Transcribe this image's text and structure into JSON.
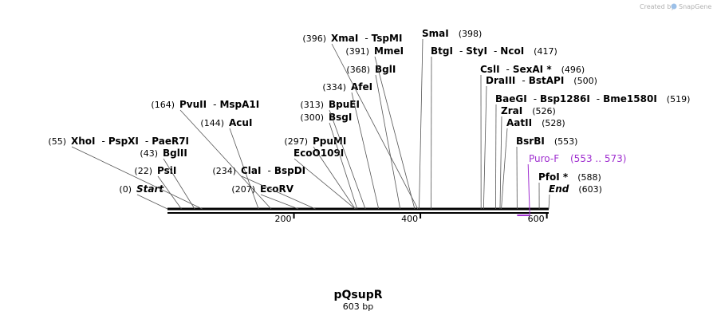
{
  "plasmid": {
    "name": "pQsupR",
    "length_label": "603 bp",
    "length": 603
  },
  "credit": {
    "text": "Created by",
    "brand": "SnapGene"
  },
  "ruler": {
    "ticks": [
      200,
      400,
      600
    ]
  },
  "sites": [
    {
      "pos": 0,
      "label_pos": "(0)",
      "names": [
        "Start"
      ],
      "italic": true
    },
    {
      "pos": 22,
      "label_pos": "(22)",
      "names": [
        "PsiI"
      ]
    },
    {
      "pos": 43,
      "label_pos": "(43)",
      "names": [
        "BglII"
      ]
    },
    {
      "pos": 55,
      "label_pos": "(55)",
      "names": [
        "XhoI",
        "PspXI",
        "PaeR7I"
      ]
    },
    {
      "pos": 144,
      "label_pos": "(144)",
      "names": [
        "AcuI"
      ]
    },
    {
      "pos": 164,
      "label_pos": "(164)",
      "names": [
        "PvuII",
        "MspA1I"
      ]
    },
    {
      "pos": 207,
      "label_pos": "(207)",
      "names": [
        "EcoRV"
      ]
    },
    {
      "pos": 234,
      "label_pos": "(234)",
      "names": [
        "ClaI",
        "BspDI"
      ]
    },
    {
      "pos": 297,
      "label_pos": "(297)",
      "names": [
        "PpuMI"
      ]
    },
    {
      "pos": 297,
      "label_pos": "",
      "names": [
        "EcoO109I"
      ]
    },
    {
      "pos": 300,
      "label_pos": "(300)",
      "names": [
        "BsgI"
      ]
    },
    {
      "pos": 313,
      "label_pos": "(313)",
      "names": [
        "BpuEI"
      ]
    },
    {
      "pos": 334,
      "label_pos": "(334)",
      "names": [
        "AfeI"
      ]
    },
    {
      "pos": 368,
      "label_pos": "(368)",
      "names": [
        "BglI"
      ]
    },
    {
      "pos": 391,
      "label_pos": "(391)",
      "names": [
        "MmeI"
      ]
    },
    {
      "pos": 396,
      "label_pos": "(396)",
      "names": [
        "XmaI",
        "TspMI"
      ]
    },
    {
      "pos": 398,
      "label_pos": "(398)",
      "names": [
        "SmaI"
      ]
    },
    {
      "pos": 417,
      "label_pos": "(417)",
      "names": [
        "BtgI",
        "StyI",
        "NcoI"
      ]
    },
    {
      "pos": 496,
      "label_pos": "(496)",
      "names": [
        "CslI",
        "SexAI *"
      ]
    },
    {
      "pos": 500,
      "label_pos": "(500)",
      "names": [
        "DraIII",
        "BstAPI"
      ]
    },
    {
      "pos": 519,
      "label_pos": "(519)",
      "names": [
        "BaeGI",
        "Bsp1286I",
        "Bme1580I"
      ]
    },
    {
      "pos": 526,
      "label_pos": "(526)",
      "names": [
        "ZraI"
      ]
    },
    {
      "pos": 528,
      "label_pos": "(528)",
      "names": [
        "AatII"
      ]
    },
    {
      "pos": 553,
      "label_pos": "(553)",
      "names": [
        "BsrBI"
      ]
    },
    {
      "pos": 588,
      "label_pos": "(588)",
      "names": [
        "PfoI *"
      ]
    },
    {
      "pos": 603,
      "label_pos": "(603)",
      "names": [
        "End"
      ],
      "italic": true
    }
  ],
  "features": [
    {
      "name": "Puro-F",
      "range": "(553 .. 573)",
      "start": 553,
      "end": 573,
      "color": "#a030d0"
    }
  ]
}
